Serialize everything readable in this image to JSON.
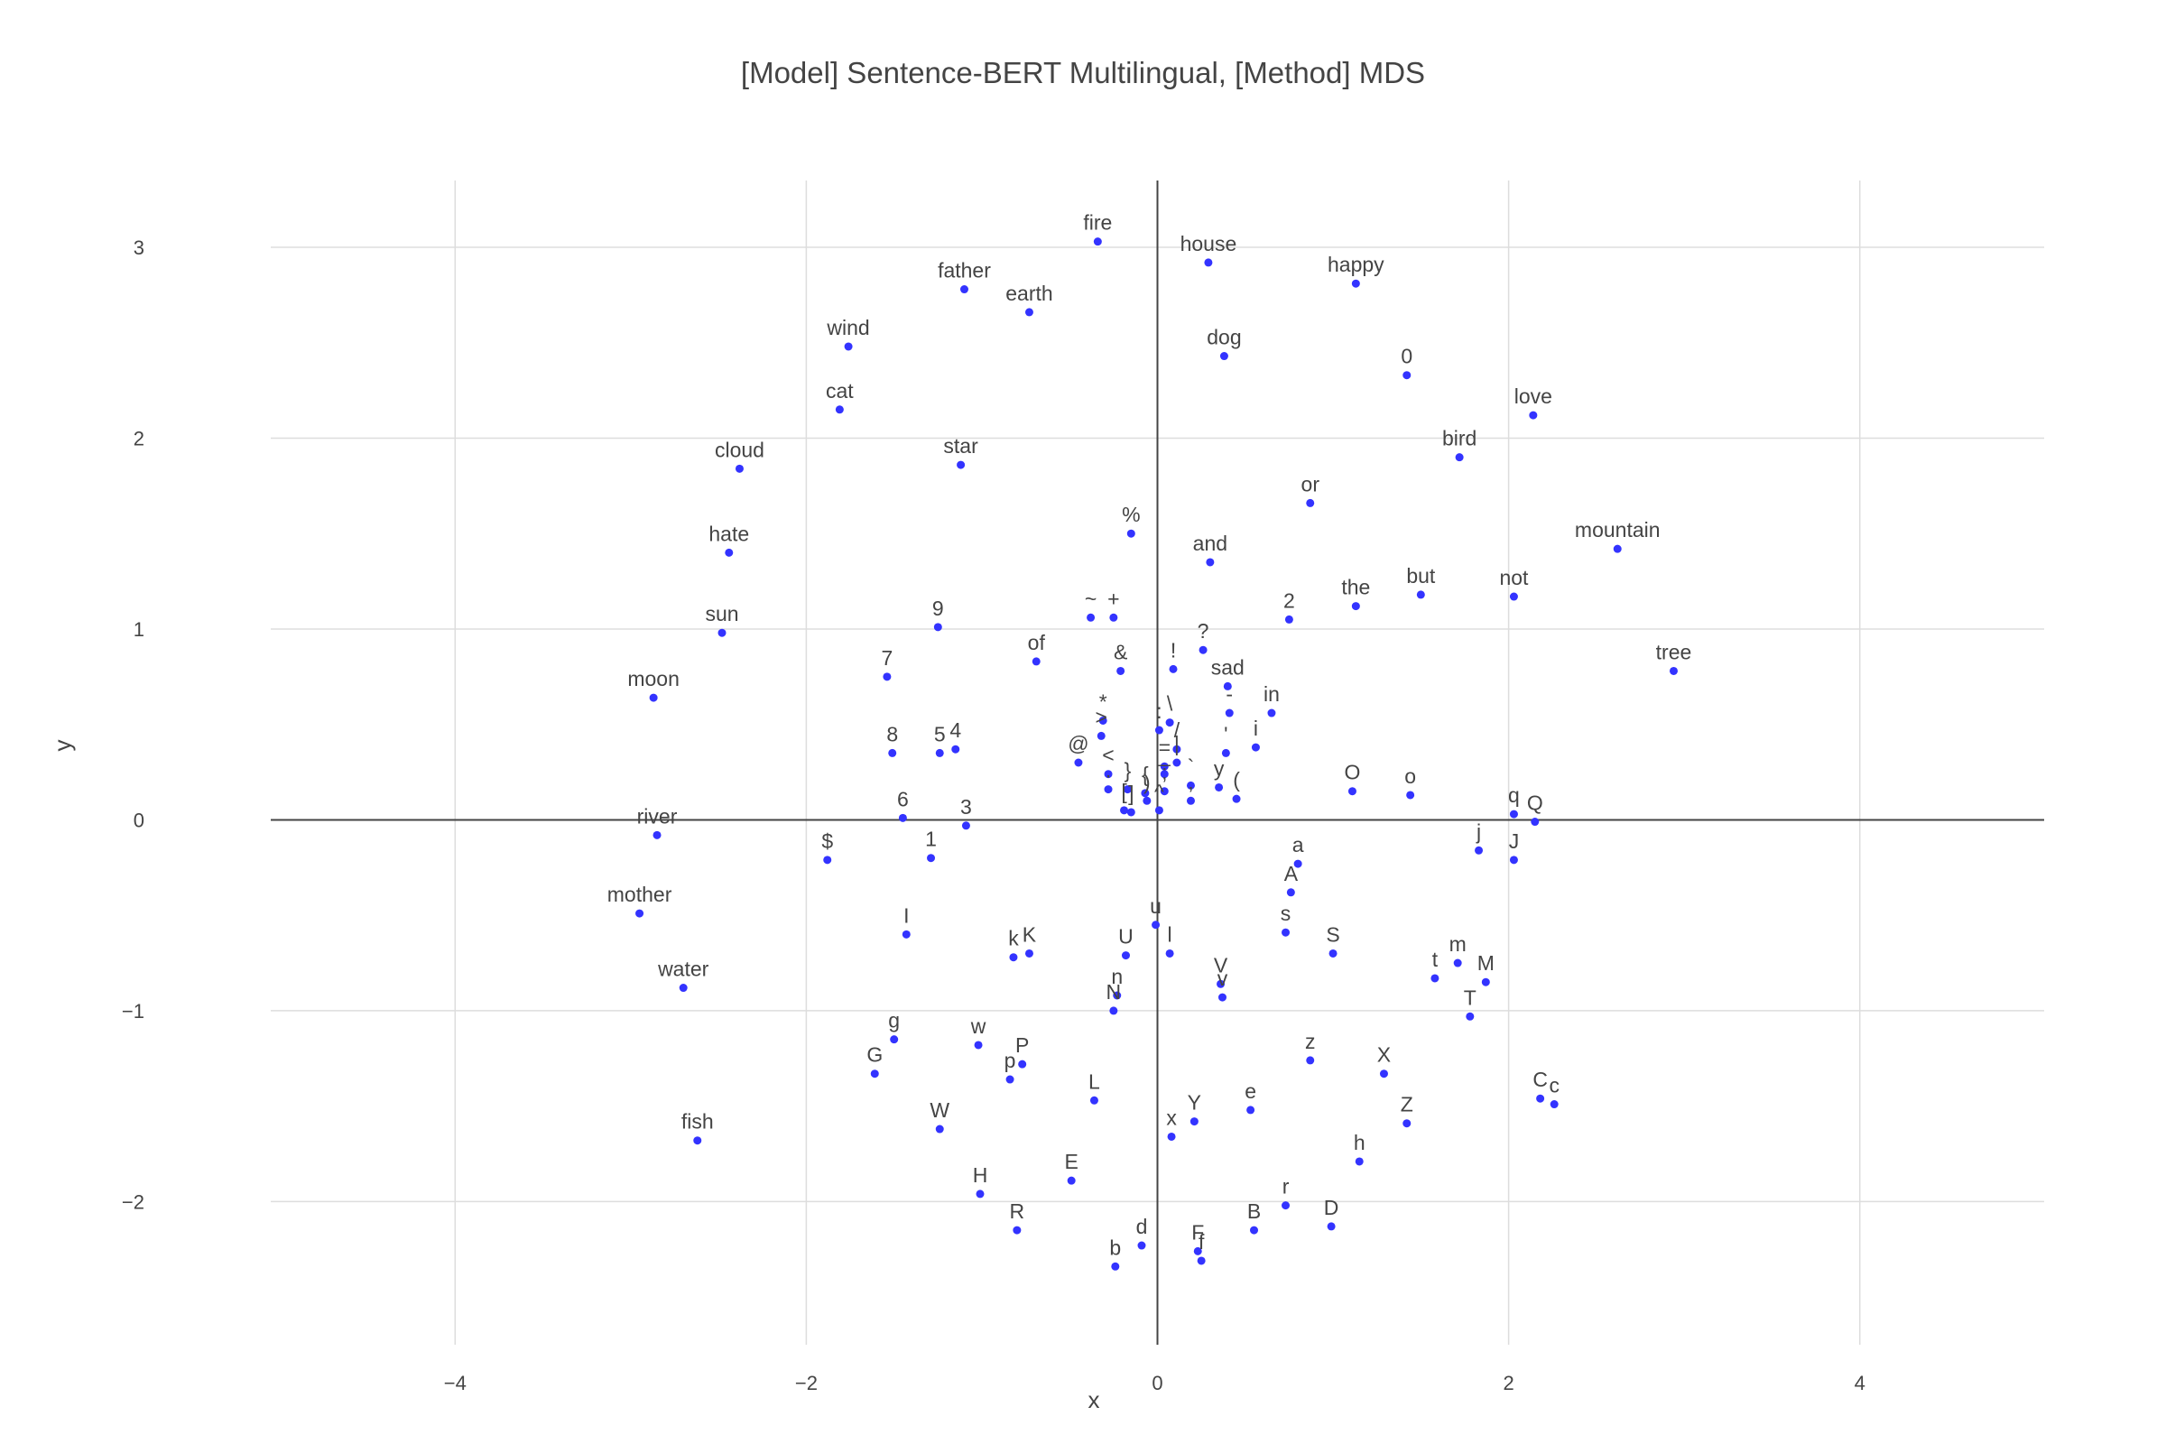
{
  "chart_data": {
    "type": "scatter",
    "title": "[Model] Sentence-BERT Multilingual, [Method] MDS",
    "xlabel": "x",
    "ylabel": "y",
    "xlim": [
      -5.05,
      5.05
    ],
    "ylim": [
      -2.75,
      3.35
    ],
    "x_ticks": [
      -4,
      -2,
      0,
      2,
      4
    ],
    "y_ticks": [
      -2,
      -1,
      0,
      1,
      2,
      3
    ],
    "x_tick_labels": [
      "−4",
      "−2",
      "0",
      "2",
      "4"
    ],
    "y_tick_labels": [
      "−2",
      "−1",
      "0",
      "1",
      "2",
      "3"
    ],
    "grid": true,
    "zero_lines": true,
    "marker_color": "#3333ff",
    "points": [
      {
        "label": "fire",
        "x": -0.34,
        "y": 3.03
      },
      {
        "label": "house",
        "x": 0.29,
        "y": 2.92
      },
      {
        "label": "happy",
        "x": 1.13,
        "y": 2.81
      },
      {
        "label": "father",
        "x": -1.1,
        "y": 2.78
      },
      {
        "label": "earth",
        "x": -0.73,
        "y": 2.66
      },
      {
        "label": "wind",
        "x": -1.76,
        "y": 2.48
      },
      {
        "label": "dog",
        "x": 0.38,
        "y": 2.43
      },
      {
        "label": "0",
        "x": 1.42,
        "y": 2.33
      },
      {
        "label": "cat",
        "x": -1.81,
        "y": 2.15
      },
      {
        "label": "love",
        "x": 2.14,
        "y": 2.12
      },
      {
        "label": "bird",
        "x": 1.72,
        "y": 1.9
      },
      {
        "label": "cloud",
        "x": -2.38,
        "y": 1.84
      },
      {
        "label": "star",
        "x": -1.12,
        "y": 1.86
      },
      {
        "label": "or",
        "x": 0.87,
        "y": 1.66
      },
      {
        "label": "%",
        "x": -0.15,
        "y": 1.5
      },
      {
        "label": "hate",
        "x": -2.44,
        "y": 1.4
      },
      {
        "label": "and",
        "x": 0.3,
        "y": 1.35
      },
      {
        "label": "mountain",
        "x": 2.62,
        "y": 1.42
      },
      {
        "label": "the",
        "x": 1.13,
        "y": 1.12
      },
      {
        "label": "but",
        "x": 1.5,
        "y": 1.18
      },
      {
        "label": "not",
        "x": 2.03,
        "y": 1.17
      },
      {
        "label": "~",
        "x": -0.38,
        "y": 1.06
      },
      {
        "label": "+",
        "x": -0.25,
        "y": 1.06
      },
      {
        "label": "2",
        "x": 0.75,
        "y": 1.05
      },
      {
        "label": "9",
        "x": -1.25,
        "y": 1.01
      },
      {
        "label": "sun",
        "x": -2.48,
        "y": 0.98
      },
      {
        "label": "?",
        "x": 0.26,
        "y": 0.89
      },
      {
        "label": "of",
        "x": -0.69,
        "y": 0.83
      },
      {
        "label": "&",
        "x": -0.21,
        "y": 0.78
      },
      {
        "label": "!",
        "x": 0.09,
        "y": 0.79
      },
      {
        "label": "tree",
        "x": 2.94,
        "y": 0.78
      },
      {
        "label": "7",
        "x": -1.54,
        "y": 0.75
      },
      {
        "label": "sad",
        "x": 0.4,
        "y": 0.7
      },
      {
        "label": "moon",
        "x": -2.87,
        "y": 0.64
      },
      {
        "label": "in",
        "x": 0.65,
        "y": 0.56
      },
      {
        "label": "-",
        "x": 0.41,
        "y": 0.56
      },
      {
        "label": "*",
        "x": -0.31,
        "y": 0.52
      },
      {
        "label": "\\",
        "x": 0.07,
        "y": 0.51
      },
      {
        "label": ">",
        "x": -0.32,
        "y": 0.44
      },
      {
        "label": ":",
        "x": 0.01,
        "y": 0.47
      },
      {
        "label": "/",
        "x": 0.11,
        "y": 0.37
      },
      {
        "label": "i",
        "x": 0.56,
        "y": 0.38
      },
      {
        "label": "'",
        "x": 0.39,
        "y": 0.35
      },
      {
        "label": "8",
        "x": -1.51,
        "y": 0.35
      },
      {
        "label": "5",
        "x": -1.24,
        "y": 0.35
      },
      {
        "label": "4",
        "x": -1.15,
        "y": 0.37
      },
      {
        "label": "@",
        "x": -0.45,
        "y": 0.3
      },
      {
        "label": "|",
        "x": 0.11,
        "y": 0.3
      },
      {
        "label": "=",
        "x": 0.04,
        "y": 0.28
      },
      {
        "label": "<",
        "x": -0.28,
        "y": 0.24
      },
      {
        "label": "_",
        "x": 0.04,
        "y": 0.24
      },
      {
        "label": "`",
        "x": 0.19,
        "y": 0.18
      },
      {
        "label": "y",
        "x": 0.35,
        "y": 0.17
      },
      {
        "label": "}",
        "x": -0.17,
        "y": 0.16
      },
      {
        "label": "{",
        "x": -0.07,
        "y": 0.14
      },
      {
        "label": "(",
        "x": 0.45,
        "y": 0.11
      },
      {
        "label": "O",
        "x": 1.11,
        "y": 0.15
      },
      {
        "label": "o",
        "x": 1.44,
        "y": 0.13
      },
      {
        "label": "[",
        "x": -0.19,
        "y": 0.05
      },
      {
        "label": "]",
        "x": -0.15,
        "y": 0.04
      },
      {
        "label": ")",
        "x": -0.06,
        "y": 0.1
      },
      {
        "label": "^",
        "x": 0.01,
        "y": 0.05
      },
      {
        "label": ";",
        "x": 0.04,
        "y": 0.15
      },
      {
        "label": ".",
        "x": -0.28,
        "y": 0.16
      },
      {
        "label": ",",
        "x": 0.19,
        "y": 0.1
      },
      {
        "label": "q",
        "x": 2.03,
        "y": 0.03
      },
      {
        "label": "Q",
        "x": 2.15,
        "y": -0.01
      },
      {
        "label": "6",
        "x": -1.45,
        "y": 0.01
      },
      {
        "label": "3",
        "x": -1.09,
        "y": -0.03
      },
      {
        "label": "river",
        "x": -2.85,
        "y": -0.08
      },
      {
        "label": "$",
        "x": -1.88,
        "y": -0.21
      },
      {
        "label": "1",
        "x": -1.29,
        "y": -0.2
      },
      {
        "label": "j",
        "x": 1.83,
        "y": -0.16
      },
      {
        "label": "J",
        "x": 2.03,
        "y": -0.21
      },
      {
        "label": "a",
        "x": 0.8,
        "y": -0.23
      },
      {
        "label": "A",
        "x": 0.76,
        "y": -0.38
      },
      {
        "label": "mother",
        "x": -2.95,
        "y": -0.49
      },
      {
        "label": "u",
        "x": -0.01,
        "y": -0.55
      },
      {
        "label": "s",
        "x": 0.73,
        "y": -0.59
      },
      {
        "label": "I",
        "x": -1.43,
        "y": -0.6
      },
      {
        "label": "k",
        "x": -0.82,
        "y": -0.72
      },
      {
        "label": "K",
        "x": -0.73,
        "y": -0.7
      },
      {
        "label": "U",
        "x": -0.18,
        "y": -0.71
      },
      {
        "label": "l",
        "x": 0.07,
        "y": -0.7
      },
      {
        "label": "S",
        "x": 1.0,
        "y": -0.7
      },
      {
        "label": "t",
        "x": 1.58,
        "y": -0.83
      },
      {
        "label": "m",
        "x": 1.71,
        "y": -0.75
      },
      {
        "label": "M",
        "x": 1.87,
        "y": -0.85
      },
      {
        "label": "V",
        "x": 0.36,
        "y": -0.86
      },
      {
        "label": "v",
        "x": 0.37,
        "y": -0.93
      },
      {
        "label": "n",
        "x": -0.23,
        "y": -0.92
      },
      {
        "label": "N",
        "x": -0.25,
        "y": -1.0
      },
      {
        "label": "water",
        "x": -2.7,
        "y": -0.88
      },
      {
        "label": "T",
        "x": 1.78,
        "y": -1.03
      },
      {
        "label": "g",
        "x": -1.5,
        "y": -1.15
      },
      {
        "label": "w",
        "x": -1.02,
        "y": -1.18
      },
      {
        "label": "P",
        "x": -0.77,
        "y": -1.28
      },
      {
        "label": "G",
        "x": -1.61,
        "y": -1.33
      },
      {
        "label": "p",
        "x": -0.84,
        "y": -1.36
      },
      {
        "label": "z",
        "x": 0.87,
        "y": -1.26
      },
      {
        "label": "X",
        "x": 1.29,
        "y": -1.33
      },
      {
        "label": "C",
        "x": 2.18,
        "y": -1.46
      },
      {
        "label": "c",
        "x": 2.26,
        "y": -1.49
      },
      {
        "label": "L",
        "x": -0.36,
        "y": -1.47
      },
      {
        "label": "e",
        "x": 0.53,
        "y": -1.52
      },
      {
        "label": "Y",
        "x": 0.21,
        "y": -1.58
      },
      {
        "label": "x",
        "x": 0.08,
        "y": -1.66
      },
      {
        "label": "Z",
        "x": 1.42,
        "y": -1.59
      },
      {
        "label": "W",
        "x": -1.24,
        "y": -1.62
      },
      {
        "label": "fish",
        "x": -2.62,
        "y": -1.68
      },
      {
        "label": "h",
        "x": 1.15,
        "y": -1.79
      },
      {
        "label": "E",
        "x": -0.49,
        "y": -1.89
      },
      {
        "label": "H",
        "x": -1.01,
        "y": -1.96
      },
      {
        "label": "r",
        "x": 0.73,
        "y": -2.02
      },
      {
        "label": "D",
        "x": 0.99,
        "y": -2.13
      },
      {
        "label": "R",
        "x": -0.8,
        "y": -2.15
      },
      {
        "label": "B",
        "x": 0.55,
        "y": -2.15
      },
      {
        "label": "d",
        "x": -0.09,
        "y": -2.23
      },
      {
        "label": "F",
        "x": 0.23,
        "y": -2.26
      },
      {
        "label": "f",
        "x": 0.25,
        "y": -2.31
      },
      {
        "label": "b",
        "x": -0.24,
        "y": -2.34
      }
    ]
  }
}
